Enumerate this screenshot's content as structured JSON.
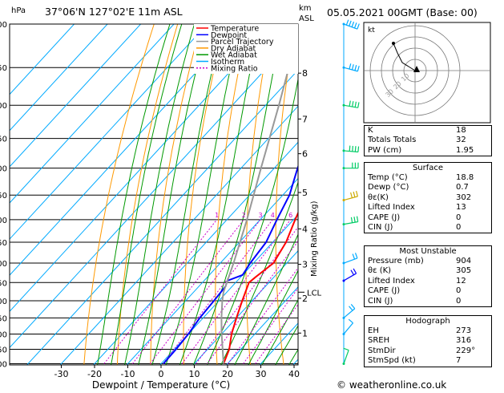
{
  "header": {
    "left_units": "hPa",
    "location": "37°06'N 127°02'E 11m ASL",
    "km_unit_1": "km",
    "km_unit_2": "ASL",
    "datetime": "05.05.2021 00GMT (Base: 00)"
  },
  "legend": [
    {
      "label": "Temperature",
      "color": "#ff0000",
      "dash": "none"
    },
    {
      "label": "Dewpoint",
      "color": "#0000ff",
      "dash": "none"
    },
    {
      "label": "Parcel Trajectory",
      "color": "#999999",
      "dash": "none"
    },
    {
      "label": "Dry Adiabat",
      "color": "#ff9900",
      "dash": "none"
    },
    {
      "label": "Wet Adiabat",
      "color": "#009900",
      "dash": "none"
    },
    {
      "label": "Isotherm",
      "color": "#00aaff",
      "dash": "none"
    },
    {
      "label": "Mixing Ratio",
      "color": "#cc00cc",
      "dash": "2,2"
    }
  ],
  "footer": "© weatheronline.co.uk",
  "hodograph": {
    "unit": "kt",
    "ring_labels": [
      "10",
      "20",
      "30"
    ]
  },
  "indices": [
    {
      "label": "K",
      "value": "18"
    },
    {
      "label": "Totals Totals",
      "value": "32"
    },
    {
      "label": "PW (cm)",
      "value": "1.95"
    }
  ],
  "surface": {
    "title": "Surface",
    "rows": [
      {
        "label": "Temp (°C)",
        "value": "18.8"
      },
      {
        "label": "Dewp (°C)",
        "value": "0.7"
      },
      {
        "label": "θε(K)",
        "value": "302"
      },
      {
        "label": "Lifted Index",
        "value": "13"
      },
      {
        "label": "CAPE (J)",
        "value": "0"
      },
      {
        "label": "CIN (J)",
        "value": "0"
      }
    ]
  },
  "most_unstable": {
    "title": "Most Unstable",
    "rows": [
      {
        "label": "Pressure (mb)",
        "value": "904"
      },
      {
        "label": "θε (K)",
        "value": "305"
      },
      {
        "label": "Lifted Index",
        "value": "12"
      },
      {
        "label": "CAPE (J)",
        "value": "0"
      },
      {
        "label": "CIN (J)",
        "value": "0"
      }
    ]
  },
  "hodograph_table": {
    "title": "Hodograph",
    "rows": [
      {
        "label": "EH",
        "value": "273"
      },
      {
        "label": "SREH",
        "value": "316"
      },
      {
        "label": "StmDir",
        "value": "229°"
      },
      {
        "label": "StmSpd (kt)",
        "value": "7"
      }
    ]
  },
  "chart_data": {
    "type": "line",
    "title": "",
    "xlabel": "Dewpoint / Temperature (°C)",
    "ylabel": "",
    "right_axis_label": "Mixing Ratio (g/kg)",
    "xlim": [
      -40,
      40
    ],
    "ylim": [
      1000,
      300
    ],
    "x_ticks": [
      -30,
      -20,
      -10,
      0,
      10,
      20,
      30,
      40
    ],
    "pressure_levels": [
      300,
      350,
      400,
      450,
      500,
      550,
      600,
      650,
      700,
      750,
      800,
      850,
      900,
      950,
      1000
    ],
    "km_ticks": [
      {
        "label": "8",
        "p": 357
      },
      {
        "label": "7",
        "p": 420
      },
      {
        "label": "6",
        "p": 475
      },
      {
        "label": "5",
        "p": 545
      },
      {
        "label": "4",
        "p": 620
      },
      {
        "label": "3",
        "p": 703
      },
      {
        "label": "2",
        "p": 793
      },
      {
        "label": "1",
        "p": 897
      }
    ],
    "lcl": {
      "label": "LCL",
      "p": 776
    },
    "mixing_ratio_labels": [
      "1",
      "2",
      "3",
      "4",
      "6",
      "8",
      "10",
      "15",
      "20",
      "25"
    ],
    "series": [
      {
        "name": "Temperature",
        "color": "#ff0000",
        "points": [
          [
            1000,
            18.8
          ],
          [
            950,
            16.5
          ],
          [
            900,
            13
          ],
          [
            850,
            10
          ],
          [
            800,
            7
          ],
          [
            750,
            4
          ],
          [
            735,
            4.5
          ],
          [
            700,
            6
          ],
          [
            650,
            4
          ],
          [
            600,
            0.5
          ],
          [
            550,
            -3
          ],
          [
            500,
            -7
          ],
          [
            450,
            -12
          ],
          [
            400,
            -18
          ],
          [
            370,
            -22
          ],
          [
            350,
            -25
          ],
          [
            300,
            -29
          ]
        ]
      },
      {
        "name": "Dewpoint",
        "color": "#0000ff",
        "points": [
          [
            1000,
            0.7
          ],
          [
            950,
            0.5
          ],
          [
            900,
            0
          ],
          [
            850,
            -1
          ],
          [
            800,
            -1.5
          ],
          [
            760,
            -2
          ],
          [
            745,
            -3
          ],
          [
            730,
            0
          ],
          [
            700,
            -1
          ],
          [
            650,
            -2
          ],
          [
            600,
            -5
          ],
          [
            550,
            -8
          ],
          [
            500,
            -13
          ],
          [
            450,
            -18
          ],
          [
            400,
            -23
          ],
          [
            370,
            -27
          ],
          [
            350,
            -33
          ],
          [
            340,
            -45
          ],
          [
            320,
            -58
          ],
          [
            300,
            -62
          ]
        ]
      },
      {
        "name": "Parcel Trajectory",
        "color": "#999999",
        "points": [
          [
            1000,
            18.8
          ],
          [
            900,
            10
          ],
          [
            850,
            5.5
          ],
          [
            800,
            1
          ],
          [
            776,
            -1
          ],
          [
            700,
            -6
          ],
          [
            600,
            -14
          ],
          [
            500,
            -24
          ],
          [
            400,
            -36
          ],
          [
            300,
            -52
          ]
        ]
      }
    ]
  },
  "wind_barbs": [
    {
      "p": 300,
      "dir": 290,
      "spd": 45,
      "color": "#00aaff"
    },
    {
      "p": 350,
      "dir": 285,
      "spd": 40,
      "color": "#00aaff"
    },
    {
      "p": 400,
      "dir": 280,
      "spd": 35,
      "color": "#00cc66"
    },
    {
      "p": 470,
      "dir": 275,
      "spd": 35,
      "color": "#00cc66"
    },
    {
      "p": 500,
      "dir": 270,
      "spd": 30,
      "color": "#00cc66"
    },
    {
      "p": 560,
      "dir": 255,
      "spd": 25,
      "color": "#ccaa00"
    },
    {
      "p": 610,
      "dir": 260,
      "spd": 25,
      "color": "#00cc66"
    },
    {
      "p": 700,
      "dir": 250,
      "spd": 20,
      "color": "#00aaff"
    },
    {
      "p": 745,
      "dir": 240,
      "spd": 20,
      "color": "#0000ff"
    },
    {
      "p": 850,
      "dir": 230,
      "spd": 15,
      "color": "#00aaff"
    },
    {
      "p": 900,
      "dir": 220,
      "spd": 10,
      "color": "#00aaff"
    },
    {
      "p": 1000,
      "dir": 200,
      "spd": 10,
      "color": "#00cc66"
    }
  ]
}
